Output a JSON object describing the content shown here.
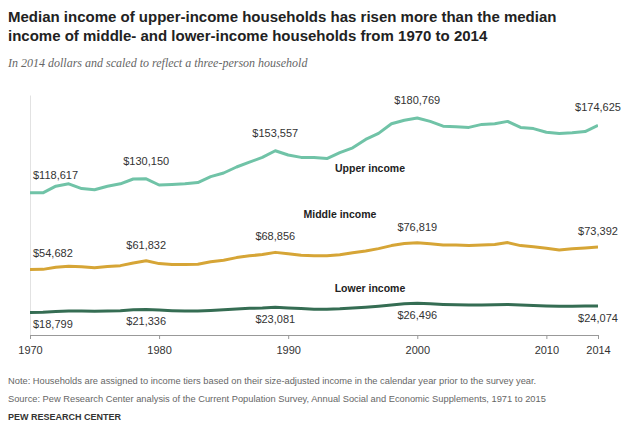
{
  "chart_data": {
    "type": "line",
    "title": "Median income of upper-income households has risen more than the median\nincome of middle- and lower-income households from 1970 to 2014",
    "subtitle": "In 2014 dollars and scaled to reflect a three-person household",
    "note": "Note: Households are assigned to income tiers based on their size-adjusted income in the calendar year prior to the survey year.",
    "source": "Source: Pew Research Center analysis of the Current Population Survey, Annual Social and Economic Supplements, 1971 to 2015",
    "credit": "PEW RESEARCH CENTER",
    "x": [
      1970,
      1971,
      1972,
      1973,
      1974,
      1975,
      1976,
      1977,
      1978,
      1979,
      1980,
      1981,
      1982,
      1983,
      1984,
      1985,
      1986,
      1987,
      1988,
      1989,
      1990,
      1991,
      1992,
      1993,
      1994,
      1995,
      1996,
      1997,
      1998,
      1999,
      2000,
      2001,
      2002,
      2003,
      2004,
      2005,
      2006,
      2007,
      2008,
      2009,
      2010,
      2011,
      2012,
      2013,
      2014
    ],
    "xlim": [
      1970,
      2014
    ],
    "xticks": [
      1970,
      1980,
      1990,
      2000,
      2010,
      2014
    ],
    "ylim": [
      0,
      200000
    ],
    "tick_labels": "x",
    "grid": false,
    "data_labels": true,
    "series": [
      {
        "name": "Upper income",
        "color": "#70c3a7",
        "values": [
          118617,
          118500,
          124000,
          126000,
          122000,
          121000,
          124000,
          126000,
          130000,
          130150,
          125000,
          125500,
          126000,
          127000,
          132000,
          135000,
          140000,
          144000,
          148000,
          153557,
          150000,
          148000,
          148000,
          147000,
          152000,
          156000,
          163000,
          168000,
          176000,
          179000,
          180769,
          178000,
          174000,
          173500,
          173000,
          175500,
          176000,
          178000,
          173000,
          172000,
          169000,
          168000,
          168500,
          169500,
          174625
        ],
        "value_labels": [
          "$118,617",
          null,
          null,
          null,
          null,
          null,
          null,
          null,
          null,
          "$130,150",
          null,
          null,
          null,
          null,
          null,
          null,
          null,
          null,
          null,
          "$153,557",
          null,
          null,
          null,
          null,
          null,
          null,
          null,
          null,
          null,
          null,
          "$180,769",
          null,
          null,
          null,
          null,
          null,
          null,
          null,
          null,
          null,
          null,
          null,
          null,
          null,
          "$174,625"
        ]
      },
      {
        "name": "Middle income",
        "color": "#d6a536",
        "values": [
          54682,
          54700,
          56500,
          57300,
          56800,
          56000,
          57000,
          57800,
          60000,
          61832,
          59500,
          58800,
          58800,
          59000,
          61000,
          62300,
          64500,
          66000,
          67000,
          68856,
          67800,
          66500,
          66000,
          66000,
          66800,
          68500,
          70000,
          72000,
          74500,
          76200,
          76819,
          76000,
          75000,
          75000,
          74500,
          75000,
          75500,
          77000,
          74500,
          73500,
          72200,
          70800,
          71800,
          72500,
          73392
        ],
        "value_labels": [
          "$54,682",
          null,
          null,
          null,
          null,
          null,
          null,
          null,
          null,
          "$61,832",
          null,
          null,
          null,
          null,
          null,
          null,
          null,
          null,
          null,
          "$68,856",
          null,
          null,
          null,
          null,
          null,
          null,
          null,
          null,
          null,
          null,
          "$76,819",
          null,
          null,
          null,
          null,
          null,
          null,
          null,
          null,
          null,
          null,
          null,
          null,
          null,
          "$73,392"
        ]
      },
      {
        "name": "Lower income",
        "color": "#356d53",
        "values": [
          18799,
          18900,
          19500,
          20000,
          20000,
          19800,
          20100,
          20300,
          21000,
          21336,
          20800,
          20300,
          20000,
          20000,
          20500,
          21000,
          21700,
          22200,
          22500,
          23081,
          22600,
          22000,
          21500,
          21400,
          21800,
          22600,
          23200,
          24000,
          25000,
          26000,
          26496,
          26000,
          25500,
          25200,
          25000,
          25000,
          25200,
          25500,
          25000,
          24600,
          24200,
          24000,
          24000,
          24100,
          24074
        ],
        "value_labels": [
          "$18,799",
          null,
          null,
          null,
          null,
          null,
          null,
          null,
          null,
          "$21,336",
          null,
          null,
          null,
          null,
          null,
          null,
          null,
          null,
          null,
          "$23,081",
          null,
          null,
          null,
          null,
          null,
          null,
          null,
          null,
          null,
          null,
          "$26,496",
          null,
          null,
          null,
          null,
          null,
          null,
          null,
          null,
          null,
          null,
          null,
          null,
          null,
          "$24,074"
        ]
      }
    ]
  }
}
